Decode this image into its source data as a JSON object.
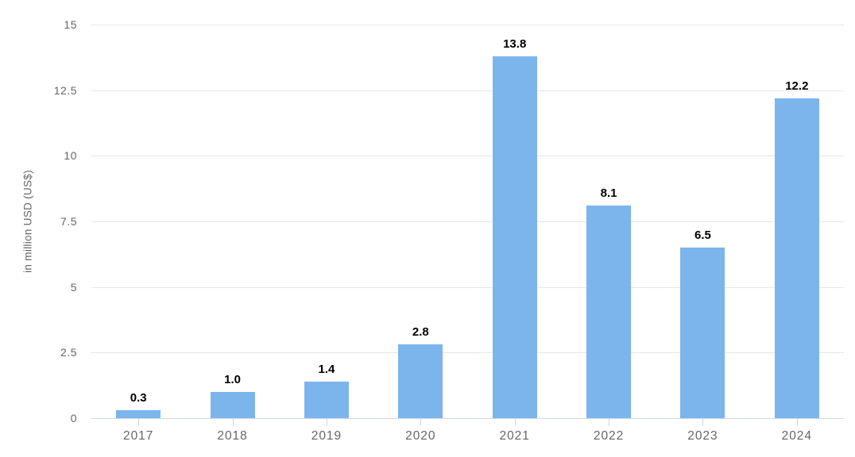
{
  "chart_data": {
    "type": "bar",
    "categories": [
      "2017",
      "2018",
      "2019",
      "2020",
      "2021",
      "2022",
      "2023",
      "2024"
    ],
    "values": [
      0.3,
      1.0,
      1.4,
      2.8,
      13.8,
      8.1,
      6.5,
      12.2
    ],
    "value_labels": [
      "0.3",
      "1.0",
      "1.4",
      "2.8",
      "13.8",
      "8.1",
      "6.5",
      "12.2"
    ],
    "title": "",
    "xlabel": "",
    "ylabel": "in million USD (US$)",
    "ylim": [
      0,
      15
    ],
    "yticks": [
      0,
      2.5,
      5,
      7.5,
      10,
      12.5,
      15
    ],
    "ytick_labels": [
      "0",
      "2.5",
      "5",
      "7.5",
      "10",
      "12.5",
      "15"
    ],
    "grid": true,
    "legend": false,
    "colors": {
      "bar": "#7cb5ec",
      "gridline": "#e6e6e6",
      "axis_line": "#ccd6eb",
      "tick": "#ccd6eb",
      "axis_text": "#666666",
      "value_text": "#000000"
    }
  }
}
